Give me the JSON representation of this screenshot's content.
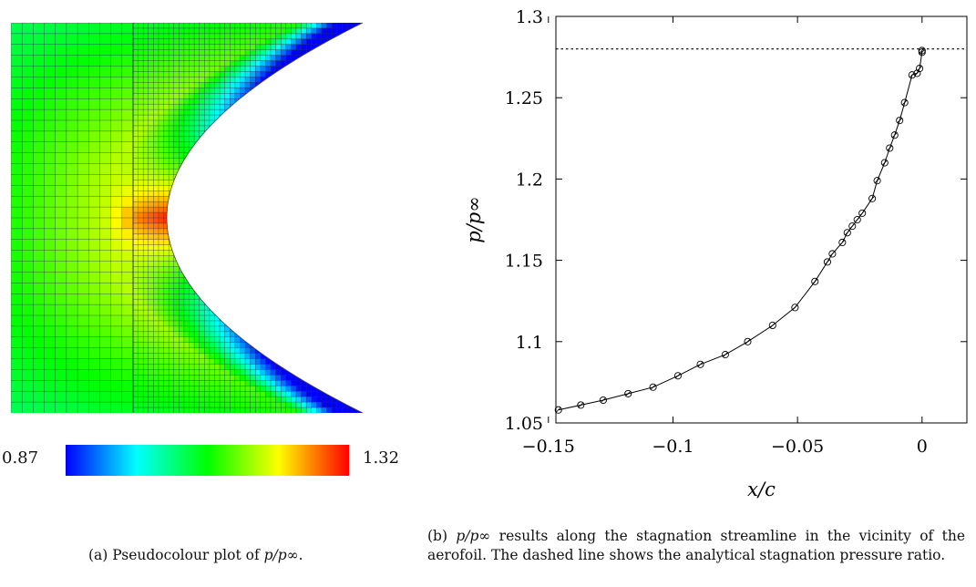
{
  "panel_a": {
    "colorbar_min": "0.87",
    "colorbar_max": "1.32",
    "colormap": [
      "#0000ff",
      "#00ffff",
      "#00ff00",
      "#ffff00",
      "#ff0000"
    ],
    "caption_prefix": "(a) Pseudocolour plot of ",
    "caption_math": "p/p∞",
    "caption_suffix": "."
  },
  "panel_b": {
    "caption_prefix": "(b) ",
    "caption_math": "p/p∞",
    "caption_text": " results along the stagnation streamline in the vicinity of the aerofoil. The dashed line shows the analytical stagnation pressure ratio."
  },
  "chart_data": {
    "type": "line",
    "xlabel": "x/c",
    "ylabel": "p/p∞",
    "xlim": [
      -0.147,
      0.018
    ],
    "ylim": [
      1.05,
      1.3
    ],
    "xticks": [
      -0.15,
      -0.1,
      -0.05,
      0
    ],
    "xtick_labels": [
      "−0.15",
      "−0.1",
      "−0.05",
      "0"
    ],
    "yticks": [
      1.05,
      1.1,
      1.15,
      1.2,
      1.25,
      1.3
    ],
    "ytick_labels": [
      "1.05",
      "1.1",
      "1.15",
      "1.2",
      "1.25",
      "1.3"
    ],
    "grid": false,
    "reference_line": {
      "y": 1.28,
      "style": "dashed"
    },
    "series": [
      {
        "marker": "circle",
        "x": [
          -0.146,
          -0.137,
          -0.128,
          -0.118,
          -0.108,
          -0.098,
          -0.089,
          -0.079,
          -0.07,
          -0.06,
          -0.051,
          -0.043,
          -0.038,
          -0.036,
          -0.032,
          -0.03,
          -0.028,
          -0.026,
          -0.024,
          -0.02,
          -0.018,
          -0.015,
          -0.013,
          -0.011,
          -0.009,
          -0.007,
          -0.004,
          -0.002,
          -0.001,
          0.0,
          0.0
        ],
        "y": [
          1.058,
          1.061,
          1.064,
          1.068,
          1.072,
          1.079,
          1.086,
          1.092,
          1.1,
          1.11,
          1.121,
          1.137,
          1.149,
          1.154,
          1.161,
          1.167,
          1.171,
          1.175,
          1.179,
          1.188,
          1.199,
          1.21,
          1.219,
          1.227,
          1.236,
          1.247,
          1.264,
          1.265,
          1.268,
          1.278,
          1.279
        ]
      }
    ]
  }
}
